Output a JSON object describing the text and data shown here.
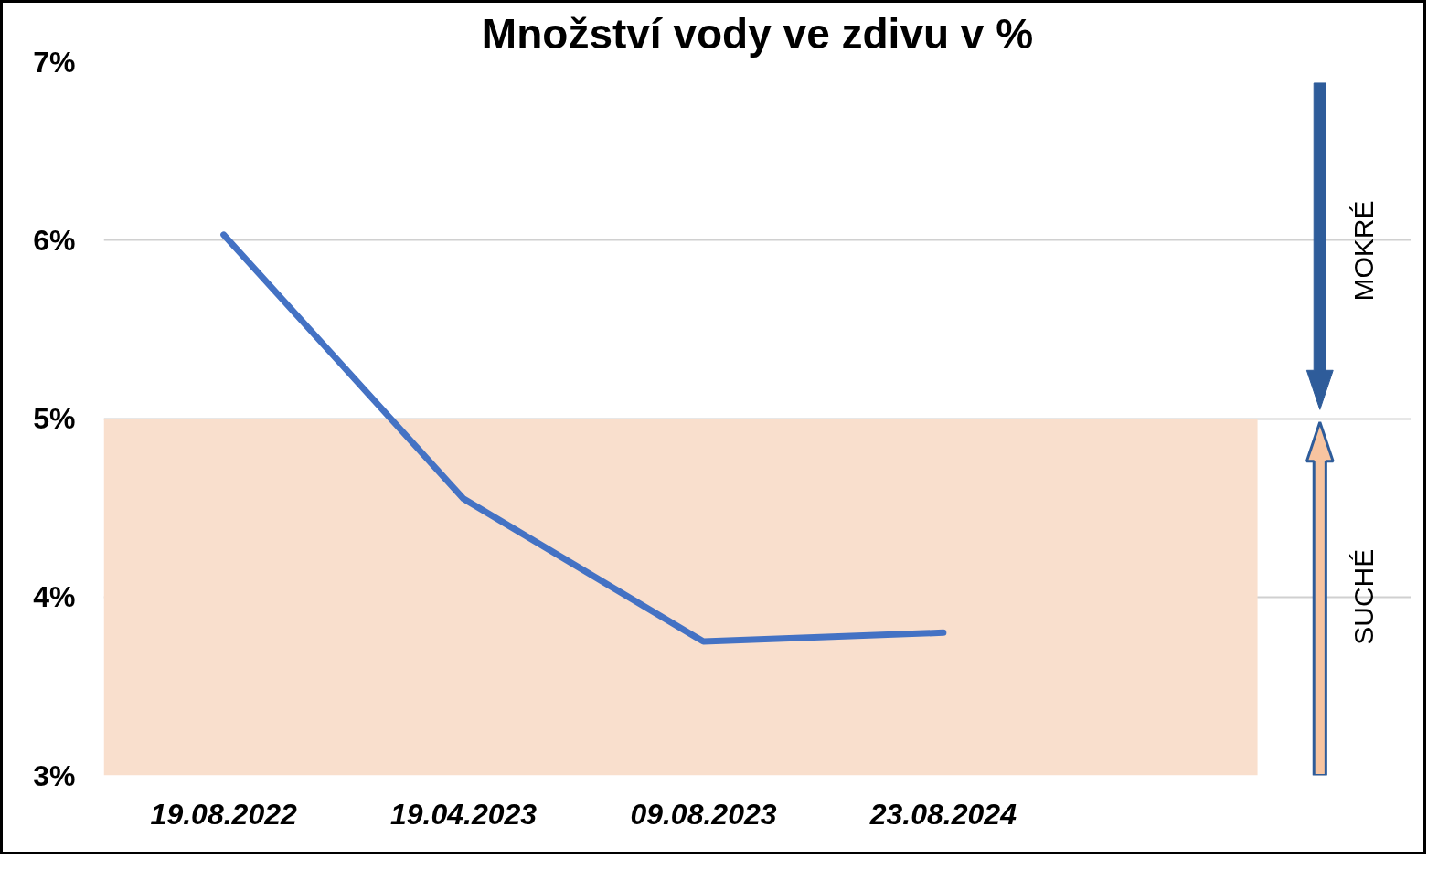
{
  "chart_data": {
    "type": "line",
    "title": "Množství vody ve zdivu v %",
    "categories": [
      "19.08.2022",
      "19.04.2023",
      "09.08.2023",
      "23.08.2024",
      null
    ],
    "series": [
      {
        "color": "#4472c4",
        "values": [
          6.03,
          4.55,
          3.75,
          3.8,
          null
        ]
      }
    ],
    "ylim": [
      3,
      7
    ],
    "yticks": [
      {
        "value": 3,
        "label": "3%"
      },
      {
        "value": 4,
        "label": "4%"
      },
      {
        "value": 5,
        "label": "5%"
      },
      {
        "value": 6,
        "label": "6%"
      },
      {
        "value": 7,
        "label": "7%"
      }
    ],
    "grid": "y",
    "marker": "none",
    "line_style": "solid",
    "bands": [
      {
        "axis": "y",
        "from": 3,
        "to": 5,
        "color": "#f9dfcd"
      }
    ],
    "annotations": [
      "MOKRÉ",
      "SUCHÉ"
    ]
  }
}
